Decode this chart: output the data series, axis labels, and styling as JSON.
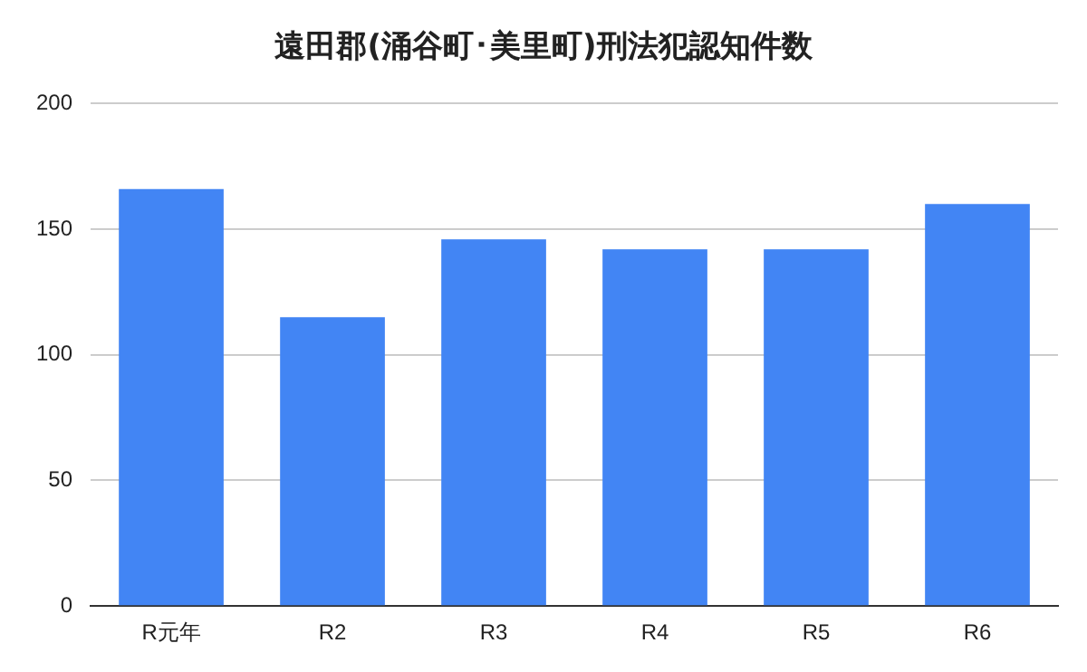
{
  "chart_data": {
    "type": "bar",
    "title": "遠田郡(涌谷町･美里町)刑法犯認知件数",
    "categories": [
      "R元年",
      "R2",
      "R3",
      "R4",
      "R5",
      "R6"
    ],
    "values": [
      166,
      115,
      146,
      142,
      142,
      160
    ],
    "color": "#4285f4",
    "ylim": [
      0,
      200
    ],
    "yticks": [
      0,
      50,
      100,
      150,
      200
    ],
    "grid": "y",
    "legend": false
  }
}
